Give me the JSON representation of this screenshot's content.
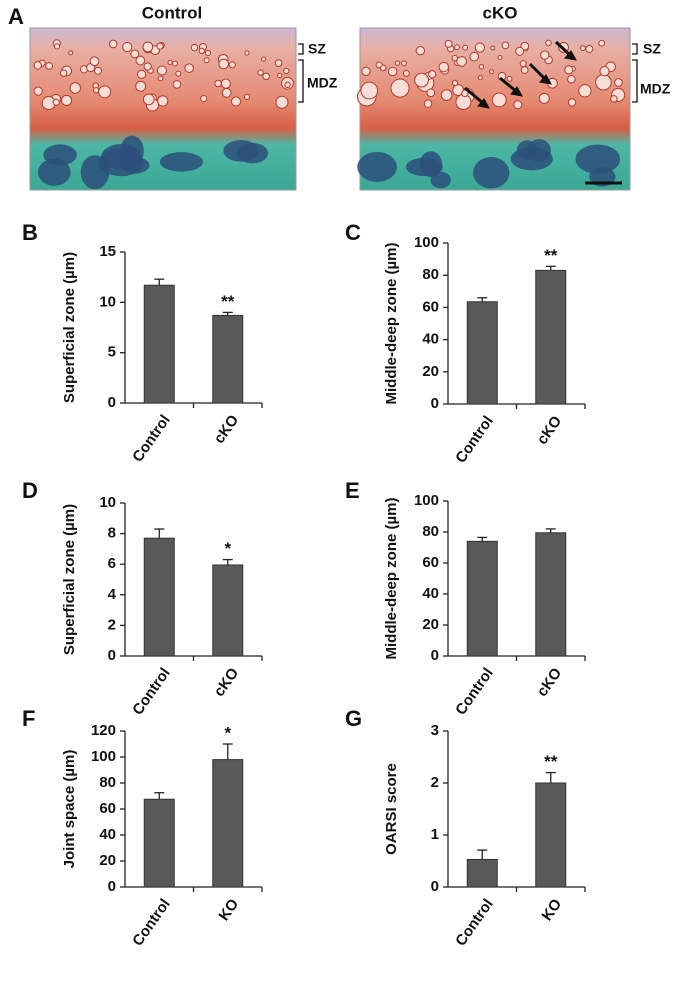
{
  "panel_a": {
    "letter": "A",
    "labels": [
      "Control",
      "cKO"
    ],
    "zones": [
      "SZ",
      "MDZ"
    ]
  },
  "chart_data": [
    {
      "type": "bar",
      "panel": "B",
      "y_label": "Superficial zone (µm)",
      "categories": [
        "Control",
        "cKO"
      ],
      "values": [
        11.7,
        8.7
      ],
      "errors": [
        0.6,
        0.3
      ],
      "annotations": [
        {
          "x": "cKO",
          "text": "**"
        }
      ],
      "color": "#595959",
      "ylim": [
        0,
        15
      ],
      "yticks": [
        0,
        5,
        10,
        15
      ]
    },
    {
      "type": "bar",
      "panel": "C",
      "y_label": "Middle-deep zone (µm)",
      "categories": [
        "Control",
        "cKO"
      ],
      "values": [
        63.5,
        83
      ],
      "errors": [
        2.5,
        2.5
      ],
      "annotations": [
        {
          "x": "cKO",
          "text": "**"
        }
      ],
      "color": "#595959",
      "ylim": [
        0,
        100
      ],
      "yticks": [
        0,
        20,
        40,
        60,
        80,
        100
      ]
    },
    {
      "type": "bar",
      "panel": "D",
      "y_label": "Superficial zone (µm)",
      "categories": [
        "Control",
        "cKO"
      ],
      "values": [
        7.7,
        5.95
      ],
      "errors": [
        0.6,
        0.35
      ],
      "annotations": [
        {
          "x": "cKO",
          "text": "*"
        }
      ],
      "color": "#595959",
      "ylim": [
        0,
        10
      ],
      "yticks": [
        0,
        2,
        4,
        6,
        8,
        10
      ]
    },
    {
      "type": "bar",
      "panel": "E",
      "y_label": "Middle-deep zone (µm)",
      "categories": [
        "Control",
        "cKO"
      ],
      "values": [
        74,
        79.5
      ],
      "errors": [
        2.5,
        2.5
      ],
      "annotations": [],
      "color": "#595959",
      "ylim": [
        0,
        100
      ],
      "yticks": [
        0,
        20,
        40,
        60,
        80,
        100
      ]
    },
    {
      "type": "bar",
      "panel": "F",
      "y_label": "Joint space (µm)",
      "categories": [
        "Control",
        "KO"
      ],
      "values": [
        67.5,
        98
      ],
      "errors": [
        5,
        12
      ],
      "annotations": [
        {
          "x": "KO",
          "text": "*"
        }
      ],
      "color": "#595959",
      "ylim": [
        0,
        120
      ],
      "yticks": [
        0,
        20,
        40,
        60,
        80,
        100,
        120
      ]
    },
    {
      "type": "bar",
      "panel": "G",
      "y_label": "OARSI score",
      "categories": [
        "Control",
        "KO"
      ],
      "values": [
        0.53,
        2.0
      ],
      "errors": [
        0.18,
        0.2
      ],
      "annotations": [
        {
          "x": "KO",
          "text": "**"
        }
      ],
      "color": "#595959",
      "ylim": [
        0,
        3
      ],
      "yticks": [
        0,
        1,
        2,
        3
      ]
    }
  ]
}
